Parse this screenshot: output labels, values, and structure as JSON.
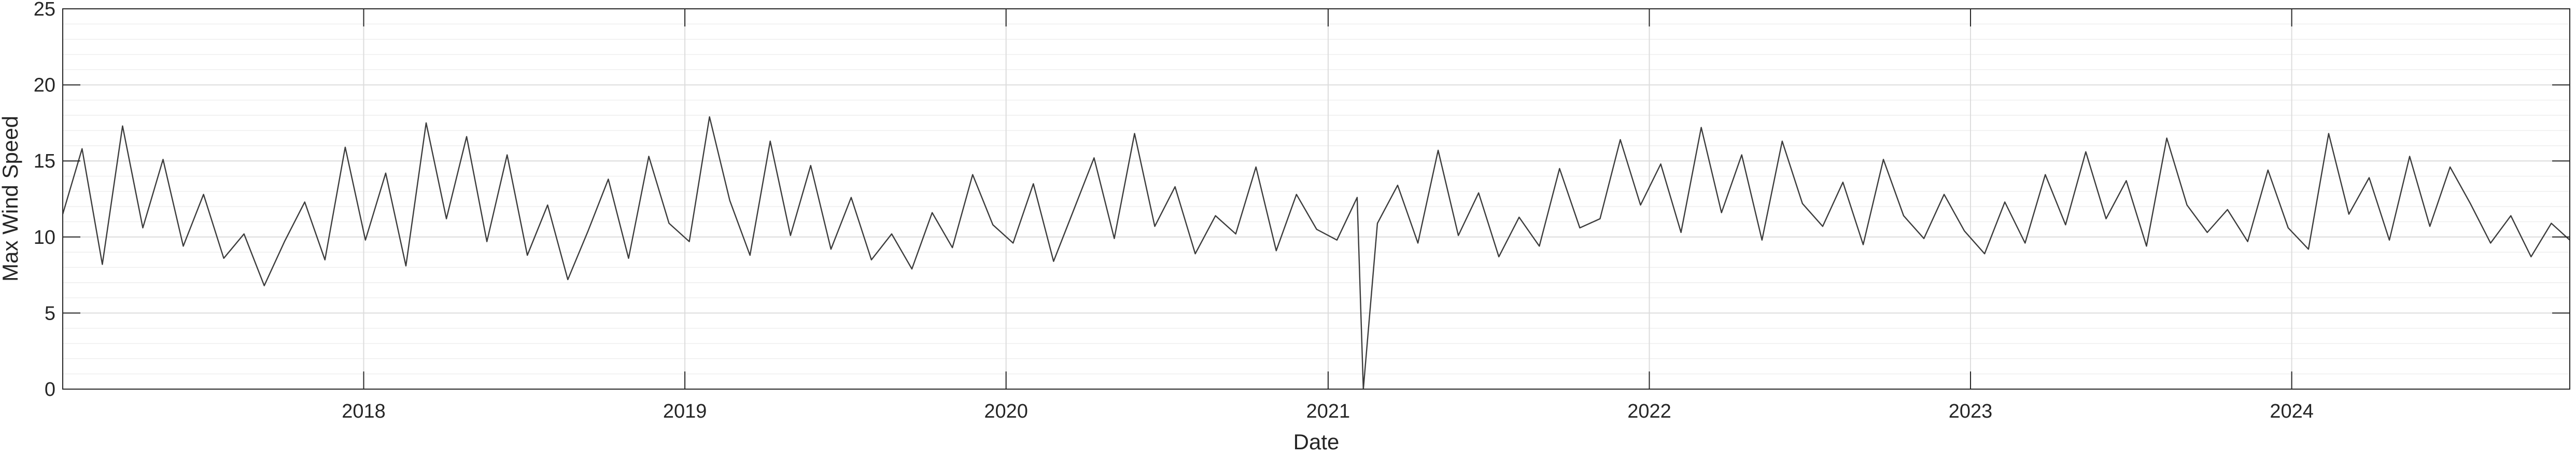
{
  "chart_data": {
    "type": "line",
    "title": "",
    "xlabel": "Date",
    "ylabel": "Max Wind Speed",
    "xlim": [
      "2017-01-24",
      "2024-11-12"
    ],
    "ylim": [
      0,
      25
    ],
    "x_ticks": [
      "2018",
      "2019",
      "2020",
      "2021",
      "2022",
      "2023",
      "2024"
    ],
    "y_ticks": [
      0,
      5,
      10,
      15,
      20,
      25
    ],
    "grid": true,
    "minor_grid": true,
    "series": [
      {
        "color": "#3c3c3c",
        "x": [
          "2017-01-24",
          "2017-02-15",
          "2017-03-10",
          "2017-04-02",
          "2017-04-25",
          "2017-05-18",
          "2017-06-10",
          "2017-07-03",
          "2017-07-26",
          "2017-08-18",
          "2017-09-10",
          "2017-10-03",
          "2017-10-26",
          "2017-11-18",
          "2017-12-11",
          "2018-01-03",
          "2018-01-26",
          "2018-02-18",
          "2018-03-13",
          "2018-04-05",
          "2018-04-28",
          "2018-05-21",
          "2018-06-13",
          "2018-07-06",
          "2018-07-29",
          "2018-08-21",
          "2018-09-13",
          "2018-10-06",
          "2018-10-29",
          "2018-11-21",
          "2018-12-14",
          "2019-01-06",
          "2019-01-29",
          "2019-02-21",
          "2019-03-16",
          "2019-04-08",
          "2019-05-01",
          "2019-05-24",
          "2019-06-16",
          "2019-07-09",
          "2019-08-01",
          "2019-08-24",
          "2019-09-16",
          "2019-10-09",
          "2019-11-01",
          "2019-11-24",
          "2019-12-17",
          "2020-01-09",
          "2020-02-01",
          "2020-02-24",
          "2020-03-18",
          "2020-04-10",
          "2020-05-03",
          "2020-05-26",
          "2020-06-18",
          "2020-07-11",
          "2020-08-03",
          "2020-08-26",
          "2020-09-18",
          "2020-10-11",
          "2020-11-03",
          "2020-11-26",
          "2020-12-19",
          "2021-01-11",
          "2021-02-03",
          "2021-02-10",
          "2021-02-26",
          "2021-03-21",
          "2021-04-13",
          "2021-05-06",
          "2021-05-29",
          "2021-06-21",
          "2021-07-14",
          "2021-08-06",
          "2021-08-29",
          "2021-09-21",
          "2021-10-14",
          "2021-11-06",
          "2021-11-29",
          "2021-12-22",
          "2022-01-14",
          "2022-02-06",
          "2022-03-01",
          "2022-03-24",
          "2022-04-16",
          "2022-05-09",
          "2022-06-01",
          "2022-06-24",
          "2022-07-17",
          "2022-08-09",
          "2022-09-01",
          "2022-09-24",
          "2022-10-17",
          "2022-11-09",
          "2022-12-02",
          "2022-12-25",
          "2023-01-17",
          "2023-02-09",
          "2023-03-04",
          "2023-03-27",
          "2023-04-19",
          "2023-05-12",
          "2023-06-04",
          "2023-06-27",
          "2023-07-20",
          "2023-08-12",
          "2023-09-04",
          "2023-09-27",
          "2023-10-20",
          "2023-11-12",
          "2023-12-05",
          "2023-12-28",
          "2024-01-20",
          "2024-02-12",
          "2024-03-06",
          "2024-03-29",
          "2024-04-21",
          "2024-05-14",
          "2024-06-06",
          "2024-06-29",
          "2024-07-22",
          "2024-08-14",
          "2024-09-06",
          "2024-09-29",
          "2024-10-22",
          "2024-11-12"
        ],
        "y": [
          11.5,
          15.8,
          8.2,
          17.3,
          10.6,
          15.1,
          9.4,
          12.8,
          8.6,
          10.2,
          6.8,
          9.7,
          12.3,
          8.5,
          15.9,
          9.8,
          14.2,
          8.1,
          17.5,
          11.2,
          16.6,
          9.7,
          15.4,
          8.8,
          12.1,
          7.2,
          10.4,
          13.8,
          8.6,
          15.3,
          10.9,
          9.7,
          17.9,
          12.4,
          8.8,
          16.3,
          10.1,
          14.7,
          9.2,
          12.6,
          8.5,
          10.2,
          7.9,
          11.6,
          9.3,
          14.1,
          10.8,
          9.6,
          13.5,
          8.4,
          11.8,
          15.2,
          9.9,
          16.8,
          10.7,
          13.3,
          8.9,
          11.4,
          10.2,
          14.6,
          9.1,
          12.8,
          10.5,
          9.8,
          12.6,
          0,
          10.9,
          13.4,
          9.6,
          15.7,
          10.1,
          12.9,
          8.7,
          11.3,
          9.4,
          14.5,
          10.6,
          11.2,
          16.4,
          12.1,
          14.8,
          10.3,
          17.2,
          11.6,
          15.4,
          9.8,
          16.3,
          12.2,
          10.7,
          13.6,
          9.5,
          15.1,
          11.4,
          9.9,
          12.8,
          10.4,
          8.9,
          12.3,
          9.6,
          14.1,
          10.8,
          15.6,
          11.2,
          13.7,
          9.4,
          16.5,
          12.1,
          10.3,
          11.8,
          9.7,
          14.4,
          10.6,
          9.2,
          16.8,
          11.5,
          13.9,
          9.8,
          15.3,
          10.7,
          14.6,
          12.2,
          9.6,
          11.4,
          8.7,
          10.9,
          9.8
        ]
      }
    ]
  }
}
